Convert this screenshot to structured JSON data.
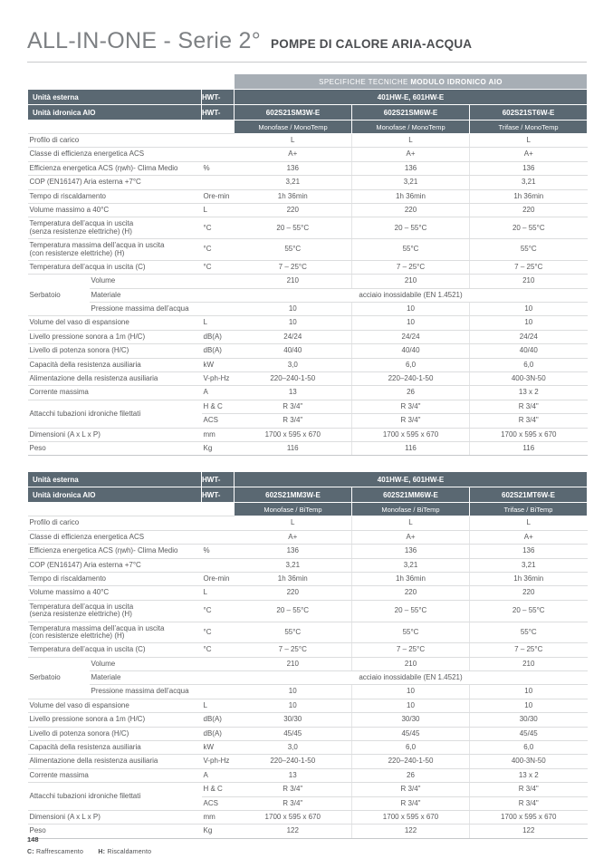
{
  "header": {
    "title": "ALL-IN-ONE - Serie 2°",
    "subtitle": "POMPE DI CALORE ARIA-ACQUA"
  },
  "footnote": {
    "cool_key": "C:",
    "cool_text": "Raffrescamento",
    "heat_key": "H:",
    "heat_text": "Riscaldamento"
  },
  "page_number": "148",
  "colors": {
    "header_dark": "#5a6872",
    "caption_gray": "#a7aeb5",
    "body_text": "#58595b",
    "row_line": "#dcddde"
  },
  "tables": [
    {
      "caption_regular": "SPECIFICHE TECNICHE",
      "caption_bold": "MODULO IDRONICO AIO",
      "external_label": "Unità esterna",
      "prefix": "HWT-",
      "external_value": "401HW-E, 601HW-E",
      "hydronic_label": "Unità idronica AIO",
      "models": [
        "602S21SM3W-E",
        "602S21SM6W-E",
        "602S21ST6W-E"
      ],
      "phases": [
        "Monofase / MonoTemp",
        "Monofase / MonoTemp",
        "Trifase / MonoTemp"
      ],
      "rows": [
        {
          "type": "normal",
          "label": "Profilo di carico",
          "unit": "",
          "values": [
            "L",
            "L",
            "L"
          ]
        },
        {
          "type": "normal",
          "label": "Classe di efficienza energetica ACS",
          "unit": "",
          "values": [
            "A+",
            "A+",
            "A+"
          ]
        },
        {
          "type": "normal",
          "label": "Efficienza energetica ACS (ηwh)- Clima Medio",
          "unit": "%",
          "values": [
            "136",
            "136",
            "136"
          ]
        },
        {
          "type": "normal",
          "label": "COP (EN16147) Aria esterna +7°C",
          "unit": "",
          "values": [
            "3,21",
            "3,21",
            "3,21"
          ]
        },
        {
          "type": "normal",
          "label": "Tempo di riscaldamento",
          "unit": "Ore-min",
          "values": [
            "1h 36min",
            "1h 36min",
            "1h 36min"
          ]
        },
        {
          "type": "normal",
          "label": "Volume massimo a 40°C",
          "unit": "L",
          "values": [
            "220",
            "220",
            "220"
          ]
        },
        {
          "type": "normal",
          "label": "Temperatura dell’acqua in uscita",
          "label2": "(senza resistenze elettriche) (H)",
          "unit": "°C",
          "values": [
            "20 – 55°C",
            "20 – 55°C",
            "20 – 55°C"
          ]
        },
        {
          "type": "normal",
          "label": "Temperatura massima dell’acqua in uscita",
          "label2": "(con resistenze elettriche) (H)",
          "unit": "°C",
          "values": [
            "55°C",
            "55°C",
            "55°C"
          ]
        },
        {
          "type": "normal",
          "label": "Temperatura dell’acqua in uscita (C)",
          "unit": "°C",
          "values": [
            "7 – 25°C",
            "7 – 25°C",
            "7 – 25°C"
          ]
        },
        {
          "type": "group",
          "group": "Serbatoio",
          "subrows": [
            {
              "label": "Volume",
              "unit": "",
              "values": [
                "210",
                "210",
                "210"
              ]
            },
            {
              "label": "Materiale",
              "unit": "",
              "span_value": "acciaio inossidabile (EN 1.4521)"
            },
            {
              "label": "Pressione massima dell’acqua",
              "unit": "",
              "values": [
                "10",
                "10",
                "10"
              ]
            }
          ]
        },
        {
          "type": "normal",
          "label": "Volume del vaso di espansione",
          "unit": "L",
          "values": [
            "10",
            "10",
            "10"
          ]
        },
        {
          "type": "normal",
          "label": "Livello pressione sonora a 1m (H/C)",
          "unit": "dB(A)",
          "values": [
            "24/24",
            "24/24",
            "24/24"
          ]
        },
        {
          "type": "normal",
          "label": "Livello di potenza sonora (H/C)",
          "unit": "dB(A)",
          "values": [
            "40/40",
            "40/40",
            "40/40"
          ]
        },
        {
          "type": "normal",
          "label": "Capacità della resistenza ausiliaria",
          "unit": "kW",
          "values": [
            "3,0",
            "6,0",
            "6,0"
          ]
        },
        {
          "type": "normal",
          "label": "Alimentazione della resistenza ausiliaria",
          "unit": "V-ph-Hz",
          "values": [
            "220–240-1-50",
            "220–240-1-50",
            "400-3N-50"
          ]
        },
        {
          "type": "normal",
          "label": "Corrente massima",
          "unit": "A",
          "values": [
            "13",
            "26",
            "13 x 2"
          ]
        },
        {
          "type": "unitgroup",
          "group": "Attacchi tubazioni idroniche filettati",
          "subrows": [
            {
              "unit": "H & C",
              "values": [
                "R 3/4\"",
                "R 3/4\"",
                "R 3/4\""
              ]
            },
            {
              "unit": "ACS",
              "values": [
                "R 3/4\"",
                "R 3/4\"",
                "R 3/4\""
              ]
            }
          ]
        },
        {
          "type": "normal",
          "label": "Dimensioni (A x L x P)",
          "unit": "mm",
          "values": [
            "1700 x 595 x 670",
            "1700 x 595 x 670",
            "1700 x 595 x 670"
          ]
        },
        {
          "type": "normal",
          "label": "Peso",
          "unit": "Kg",
          "values": [
            "116",
            "116",
            "116"
          ]
        }
      ]
    },
    {
      "caption_regular": null,
      "caption_bold": null,
      "external_label": "Unità esterna",
      "prefix": "HWT-",
      "external_value": "401HW-E, 601HW-E",
      "hydronic_label": "Unità idronica AIO",
      "models": [
        "602S21MM3W-E",
        "602S21MM6W-E",
        "602S21MT6W-E"
      ],
      "phases": [
        "Monofase / BiTemp",
        "Monofase / BiTemp",
        "Trifase / BiTemp"
      ],
      "rows": [
        {
          "type": "normal",
          "label": "Profilo di carico",
          "unit": "",
          "values": [
            "L",
            "L",
            "L"
          ]
        },
        {
          "type": "normal",
          "label": "Classe di efficienza energetica ACS",
          "unit": "",
          "values": [
            "A+",
            "A+",
            "A+"
          ]
        },
        {
          "type": "normal",
          "label": "Efficienza energetica ACS (ηwh)- Clima Medio",
          "unit": "%",
          "values": [
            "136",
            "136",
            "136"
          ]
        },
        {
          "type": "normal",
          "label": "COP (EN16147) Aria esterna +7°C",
          "unit": "",
          "values": [
            "3,21",
            "3,21",
            "3,21"
          ]
        },
        {
          "type": "normal",
          "label": "Tempo di riscaldamento",
          "unit": "Ore-min",
          "values": [
            "1h 36min",
            "1h 36min",
            "1h 36min"
          ]
        },
        {
          "type": "normal",
          "label": "Volume massimo a 40°C",
          "unit": "L",
          "values": [
            "220",
            "220",
            "220"
          ]
        },
        {
          "type": "normal",
          "label": "Temperatura dell’acqua in uscita",
          "label2": "(senza resistenze elettriche) (H)",
          "unit": "°C",
          "values": [
            "20 – 55°C",
            "20 – 55°C",
            "20 – 55°C"
          ]
        },
        {
          "type": "normal",
          "label": "Temperatura massima dell’acqua in uscita",
          "label2": "(con resistenze elettriche) (H)",
          "unit": "°C",
          "values": [
            "55°C",
            "55°C",
            "55°C"
          ]
        },
        {
          "type": "normal",
          "label": "Temperatura dell’acqua in uscita (C)",
          "unit": "°C",
          "values": [
            "7 – 25°C",
            "7 – 25°C",
            "7 – 25°C"
          ]
        },
        {
          "type": "group",
          "group": "Serbatoio",
          "subrows": [
            {
              "label": "Volume",
              "unit": "",
              "values": [
                "210",
                "210",
                "210"
              ]
            },
            {
              "label": "Materiale",
              "unit": "",
              "span_value": "acciaio inossidabile (EN 1.4521)"
            },
            {
              "label": "Pressione massima dell’acqua",
              "unit": "",
              "values": [
                "10",
                "10",
                "10"
              ]
            }
          ]
        },
        {
          "type": "normal",
          "label": "Volume del vaso di espansione",
          "unit": "L",
          "values": [
            "10",
            "10",
            "10"
          ]
        },
        {
          "type": "normal",
          "label": "Livello pressione sonora a 1m (H/C)",
          "unit": "dB(A)",
          "values": [
            "30/30",
            "30/30",
            "30/30"
          ]
        },
        {
          "type": "normal",
          "label": "Livello di potenza sonora (H/C)",
          "unit": "dB(A)",
          "values": [
            "45/45",
            "45/45",
            "45/45"
          ]
        },
        {
          "type": "normal",
          "label": "Capacità della resistenza ausiliaria",
          "unit": "kW",
          "values": [
            "3,0",
            "6,0",
            "6,0"
          ]
        },
        {
          "type": "normal",
          "label": "Alimentazione della resistenza ausiliaria",
          "unit": "V-ph-Hz",
          "values": [
            "220–240-1-50",
            "220–240-1-50",
            "400-3N-50"
          ]
        },
        {
          "type": "normal",
          "label": "Corrente massima",
          "unit": "A",
          "values": [
            "13",
            "26",
            "13 x 2"
          ]
        },
        {
          "type": "unitgroup",
          "group": "Attacchi tubazioni idroniche filettati",
          "subrows": [
            {
              "unit": "H & C",
              "values": [
                "R 3/4\"",
                "R 3/4\"",
                "R 3/4\""
              ]
            },
            {
              "unit": "ACS",
              "values": [
                "R 3/4\"",
                "R 3/4\"",
                "R 3/4\""
              ]
            }
          ]
        },
        {
          "type": "normal",
          "label": "Dimensioni (A x L x P)",
          "unit": "mm",
          "values": [
            "1700 x 595 x 670",
            "1700 x 595 x 670",
            "1700 x 595 x 670"
          ]
        },
        {
          "type": "normal",
          "label": "Peso",
          "unit": "Kg",
          "values": [
            "122",
            "122",
            "122"
          ]
        }
      ]
    }
  ]
}
